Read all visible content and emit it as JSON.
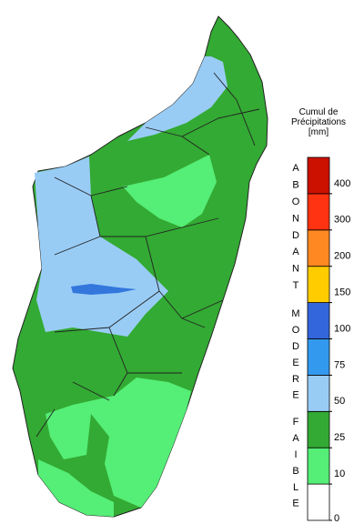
{
  "legend": {
    "title": [
      "Cumul de",
      "Précipitations",
      "[mm]"
    ],
    "ticks": [
      0,
      10,
      25,
      50,
      75,
      100,
      150,
      200,
      300,
      400
    ],
    "colors": [
      "#ffffff",
      "#55ee77",
      "#33aa33",
      "#99ccf5",
      "#3399ee",
      "#3366dd",
      "#ffcc00",
      "#ff8822",
      "#ff3311",
      "#cc1100"
    ],
    "groups": [
      {
        "label": "FAIBLE",
        "from": 0,
        "to": 3
      },
      {
        "label": "MODERE",
        "from": 3,
        "to": 6
      },
      {
        "label": "ABONDANT",
        "from": 6,
        "to": 10
      }
    ]
  }
}
